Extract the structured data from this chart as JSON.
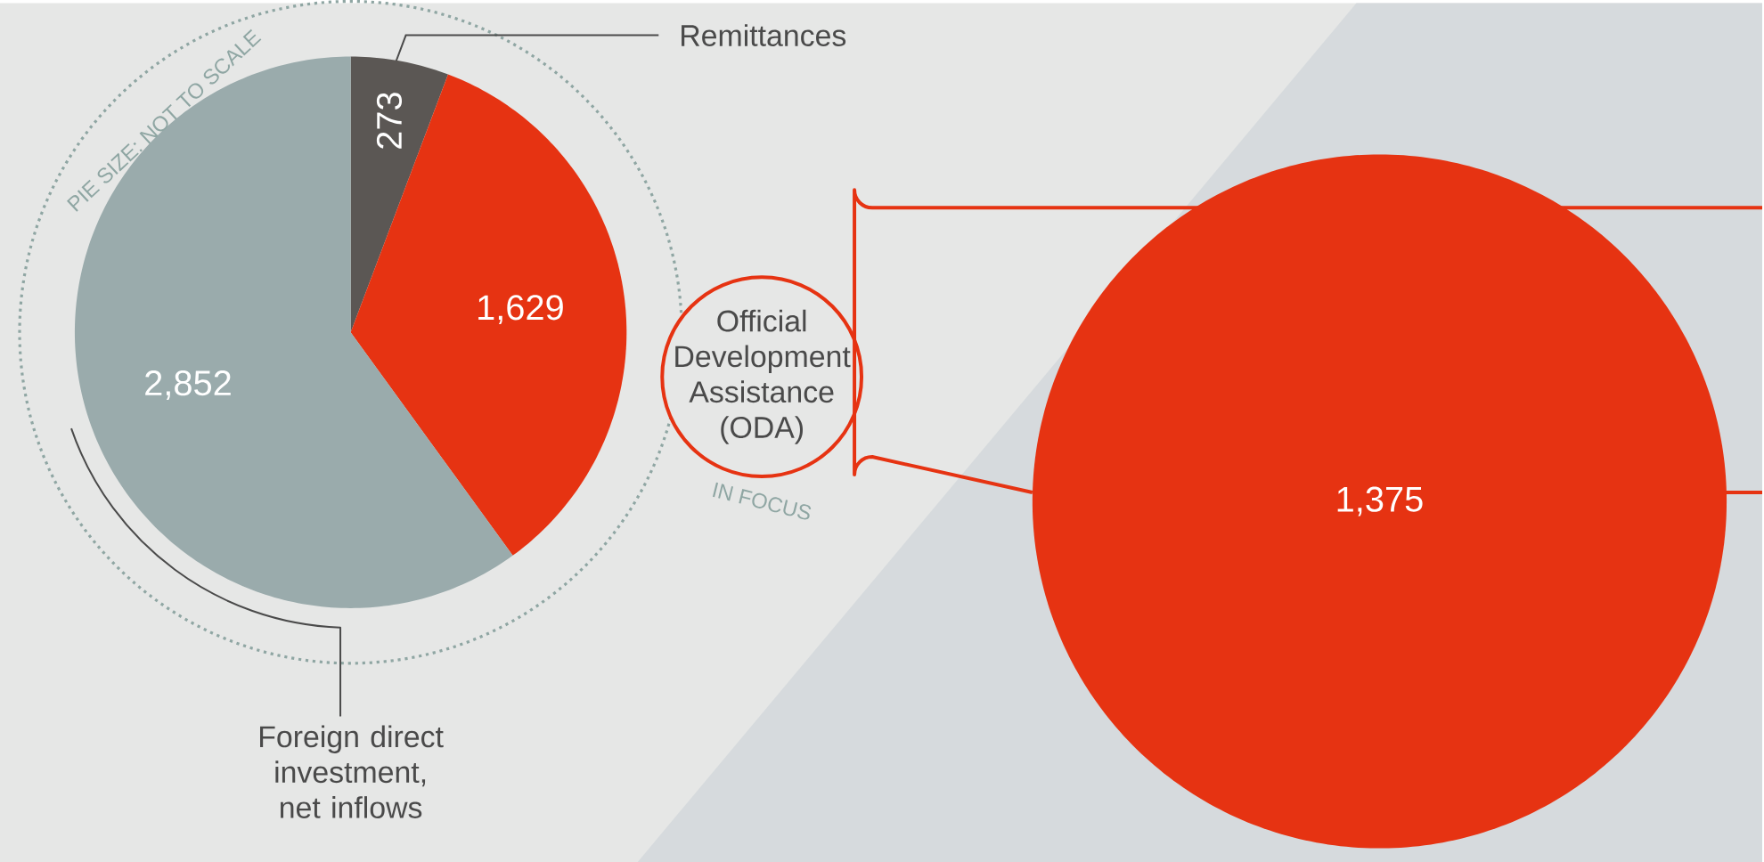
{
  "chart_data": [
    {
      "type": "pie",
      "categories": [
        "Remittances",
        "Official Development Assistance (ODA)",
        "Foreign direct investment, net inflows"
      ],
      "values": [
        273,
        1629,
        2852
      ],
      "colors": [
        "#5b5754",
        "#e63312",
        "#9aabac"
      ],
      "value_labels": [
        "273",
        "1,629",
        "2,852"
      ],
      "annotations": [
        "PIE SIZE: NOT TO SCALE",
        "IN FOCUS"
      ]
    },
    {
      "type": "pie",
      "categories": [
        null
      ],
      "values": [
        1375
      ],
      "colors": [
        "#e63312"
      ],
      "value_labels": [
        "1,375"
      ]
    }
  ]
}
